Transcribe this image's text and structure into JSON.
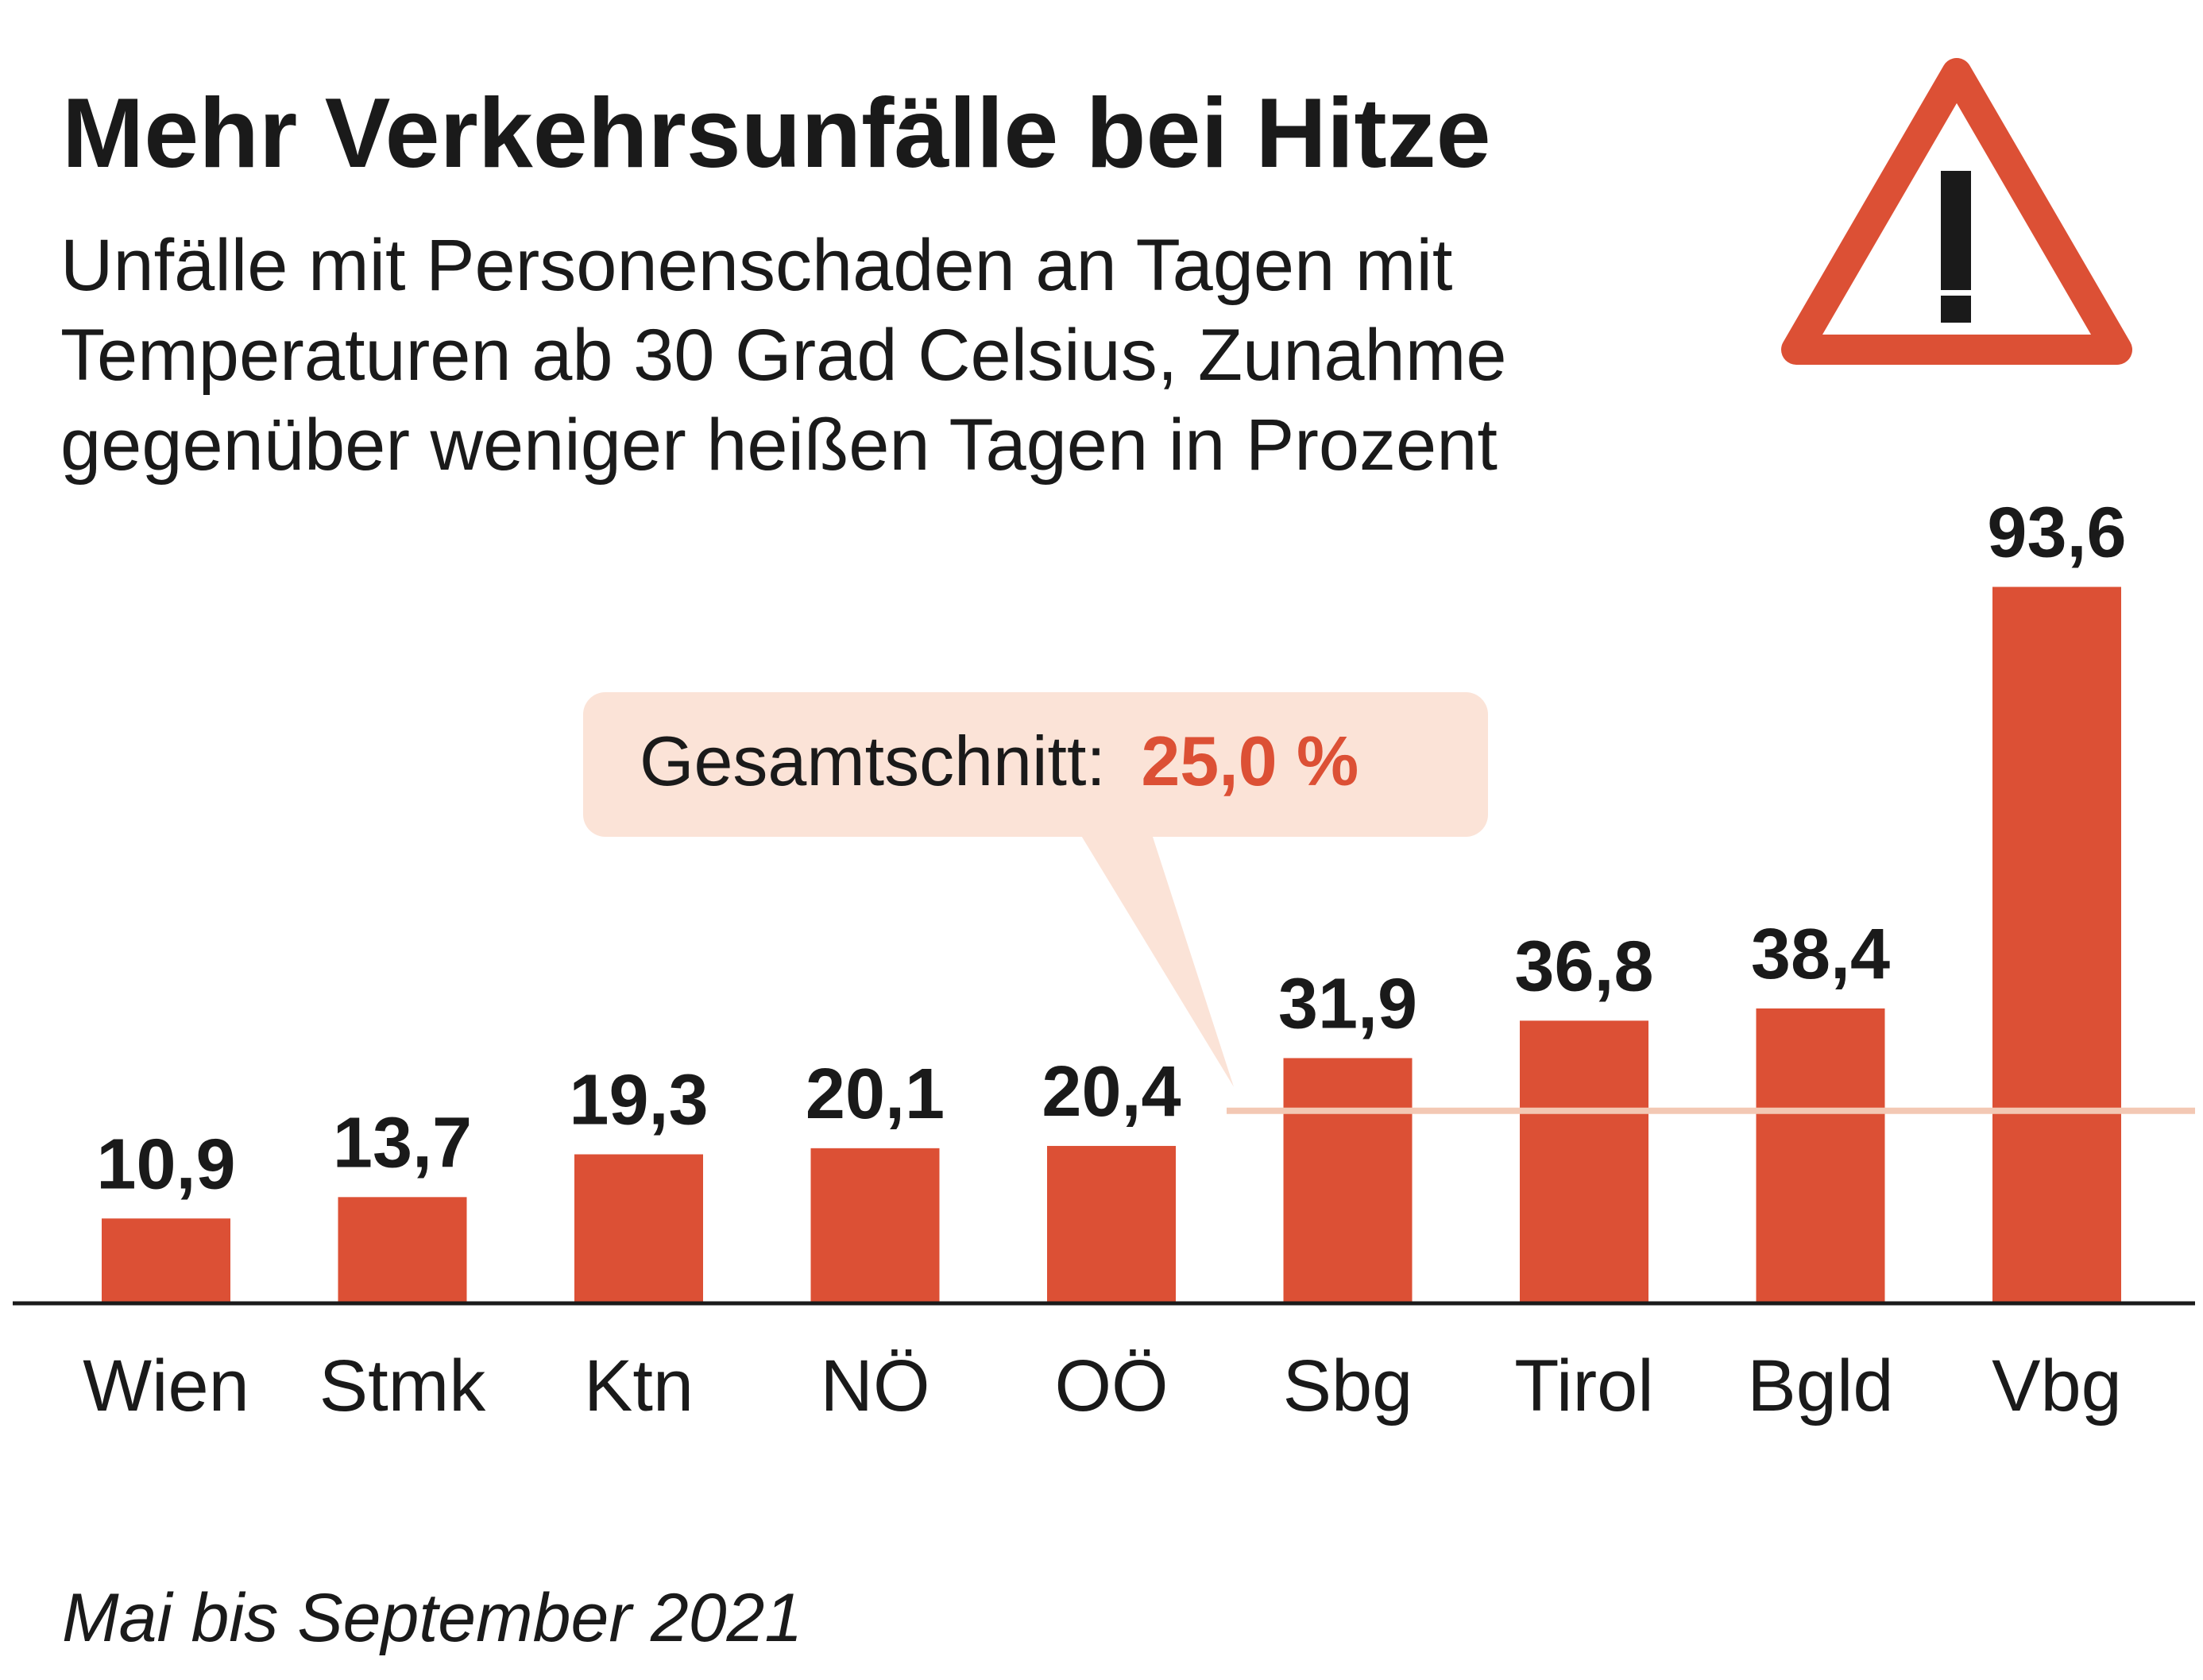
{
  "chart_data": {
    "type": "bar",
    "title": "Mehr Verkehrsunfälle bei Hitze",
    "subtitle_lines": [
      "Unfälle mit Personenschaden an Tagen mit",
      "Temperaturen ab 30 Grad Celsius, Zunahme",
      "gegenüber weniger heißen Tagen in Prozent"
    ],
    "categories": [
      "Wien",
      "Stmk",
      "Ktn",
      "NÖ",
      "OÖ",
      "Sbg",
      "Tirol",
      "Bgld",
      "Vbg"
    ],
    "values": [
      10.9,
      13.7,
      19.3,
      20.1,
      20.4,
      31.9,
      36.8,
      38.4,
      93.6
    ],
    "value_labels": [
      "10,9",
      "13,7",
      "19,3",
      "20,1",
      "20,4",
      "31,9",
      "36,8",
      "38,4",
      "93,6"
    ],
    "average": {
      "label": "Gesamtschnitt:",
      "value": 25.0,
      "value_label": "25,0 %"
    },
    "footnote": "Mai bis September 2021",
    "ylim": [
      0,
      100
    ],
    "grid": false,
    "legend": "none",
    "icon": "warning-triangle-icon",
    "colors": {
      "bar": "#dc5035",
      "average_line": "#f3c8b4",
      "callout": "#fbe3d7",
      "text": "#1a1a1a",
      "highlight": "#dc5035"
    }
  }
}
